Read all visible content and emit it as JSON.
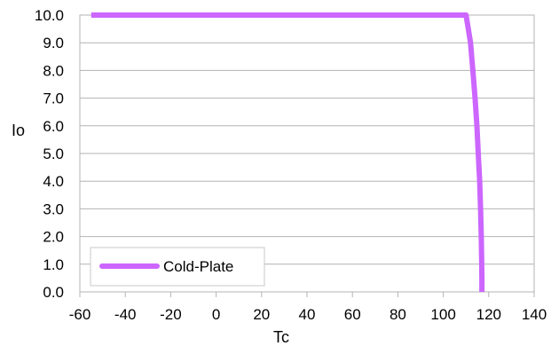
{
  "chart_data": {
    "type": "line",
    "title": "",
    "xlabel": "Tc",
    "ylabel": "Io",
    "xlim": [
      -60,
      140
    ],
    "ylim": [
      0,
      10
    ],
    "xticks": [
      "-60",
      "-40",
      "-20",
      "0",
      "20",
      "40",
      "60",
      "80",
      "100",
      "120",
      "140"
    ],
    "yticks": [
      "0.0",
      "1.0",
      "2.0",
      "3.0",
      "4.0",
      "5.0",
      "6.0",
      "7.0",
      "8.0",
      "9.0",
      "10.0"
    ],
    "grid": "horizontal",
    "legend_position": "bottom-left",
    "series": [
      {
        "name": "Cold-Plate",
        "color": "#cc66ff",
        "x": [
          -55,
          110,
          111,
          112,
          113,
          114,
          114.8,
          115.4,
          116,
          116.4,
          116.7,
          116.9,
          117,
          117
        ],
        "y": [
          10,
          10,
          9.5,
          9.0,
          8.0,
          7.0,
          6.0,
          5.0,
          4.0,
          3.0,
          2.0,
          1.0,
          0.5,
          0
        ]
      }
    ]
  }
}
